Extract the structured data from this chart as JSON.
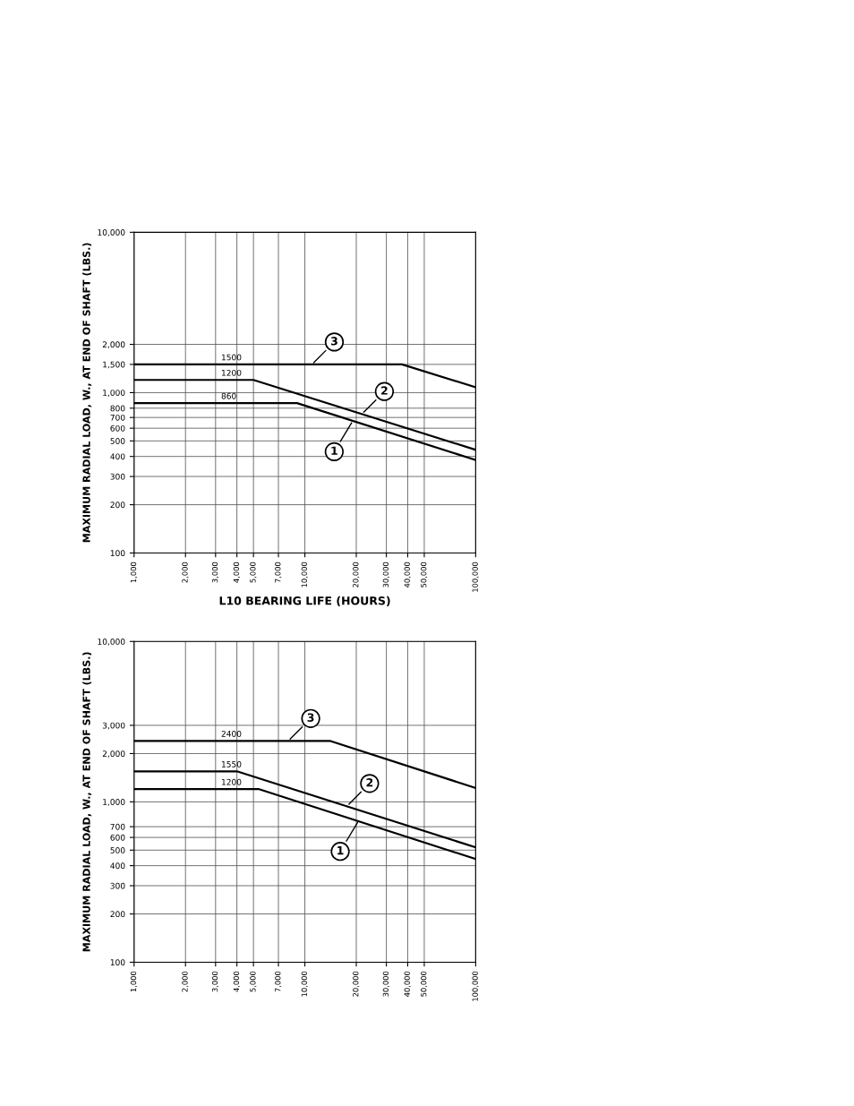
{
  "chart_data": [
    {
      "type": "line",
      "ylabel": "MAXIMUM RADIAL LOAD, W., AT END OF SHAFT (LBS.)",
      "xlabel": "L10 BEARING LIFE (HOURS)",
      "log": "xy",
      "grid": true,
      "legend": false,
      "xlim": [
        1000,
        100000
      ],
      "ylim": [
        100,
        10000
      ],
      "xticks": [
        {
          "value": 1000,
          "label": "1,000"
        },
        {
          "value": 2000,
          "label": "2,000"
        },
        {
          "value": 3000,
          "label": "3,000"
        },
        {
          "value": 4000,
          "label": "4,000"
        },
        {
          "value": 5000,
          "label": "5,000"
        },
        {
          "value": 7000,
          "label": "7,000"
        },
        {
          "value": 10000,
          "label": "10,000"
        },
        {
          "value": 20000,
          "label": "20,000"
        },
        {
          "value": 30000,
          "label": "30,000"
        },
        {
          "value": 40000,
          "label": "40,000"
        },
        {
          "value": 50000,
          "label": "50,000"
        },
        {
          "value": 100000,
          "label": "100,000"
        }
      ],
      "yticks": [
        100,
        200,
        300,
        400,
        500,
        600,
        700,
        800,
        {
          "value": 1000,
          "label": "1,000"
        },
        {
          "value": 1500,
          "label": "1,500"
        },
        {
          "value": 2000,
          "label": "2,000"
        },
        {
          "value": 10000,
          "label": "10,000"
        }
      ],
      "series": [
        {
          "name": "1500",
          "color": "#000000",
          "x": [
            1000,
            37000,
            100000
          ],
          "values": [
            1500,
            1500,
            1080
          ]
        },
        {
          "name": "1200",
          "color": "#000000",
          "x": [
            1000,
            5000,
            100000
          ],
          "values": [
            1200,
            1200,
            440
          ]
        },
        {
          "name": "860",
          "color": "#000000",
          "x": [
            1000,
            9000,
            100000
          ],
          "values": [
            860,
            860,
            380
          ]
        }
      ],
      "annotations": [
        {
          "text": "3",
          "x": 11000,
          "y": 1500
        },
        {
          "text": "2",
          "x": 21600,
          "y": 737
        },
        {
          "text": "1",
          "x": 19100,
          "y": 669
        }
      ]
    },
    {
      "type": "line",
      "ylabel": "MAXIMUM RADIAL LOAD, W., AT END OF SHAFT (LBS.)",
      "log": "xy",
      "grid": true,
      "legend": false,
      "xlim": [
        1000,
        100000
      ],
      "ylim": [
        100,
        10000
      ],
      "xticks": [
        {
          "value": 1000,
          "label": "1,000"
        },
        {
          "value": 2000,
          "label": "2,000"
        },
        {
          "value": 3000,
          "label": "3,000"
        },
        {
          "value": 4000,
          "label": "4,000"
        },
        {
          "value": 5000,
          "label": "5,000"
        },
        {
          "value": 7000,
          "label": "7,000"
        },
        {
          "value": 10000,
          "label": "10,000"
        },
        {
          "value": 20000,
          "label": "20,000"
        },
        {
          "value": 30000,
          "label": "30,000"
        },
        {
          "value": 40000,
          "label": "40,000"
        },
        {
          "value": 50000,
          "label": "50,000"
        },
        {
          "value": 100000,
          "label": "100,000"
        }
      ],
      "yticks": [
        100,
        200,
        300,
        400,
        500,
        600,
        700,
        {
          "value": 1000,
          "label": "1,000"
        },
        {
          "value": 2000,
          "label": "2,000"
        },
        {
          "value": 3000,
          "label": "3,000"
        },
        {
          "value": 10000,
          "label": "10,000"
        }
      ],
      "series": [
        {
          "name": "2400",
          "color": "#000000",
          "x": [
            1000,
            14000,
            100000
          ],
          "values": [
            2400,
            2400,
            1220
          ]
        },
        {
          "name": "1550",
          "color": "#000000",
          "x": [
            1000,
            4000,
            100000
          ],
          "values": [
            1550,
            1550,
            520
          ]
        },
        {
          "name": "1200",
          "color": "#000000",
          "x": [
            1000,
            5400,
            100000
          ],
          "values": [
            1200,
            1200,
            440
          ]
        }
      ],
      "annotations": [
        {
          "text": "3",
          "x": 8000,
          "y": 2400
        },
        {
          "text": "2",
          "x": 17700,
          "y": 944
        },
        {
          "text": "1",
          "x": 20700,
          "y": 767
        }
      ]
    }
  ]
}
